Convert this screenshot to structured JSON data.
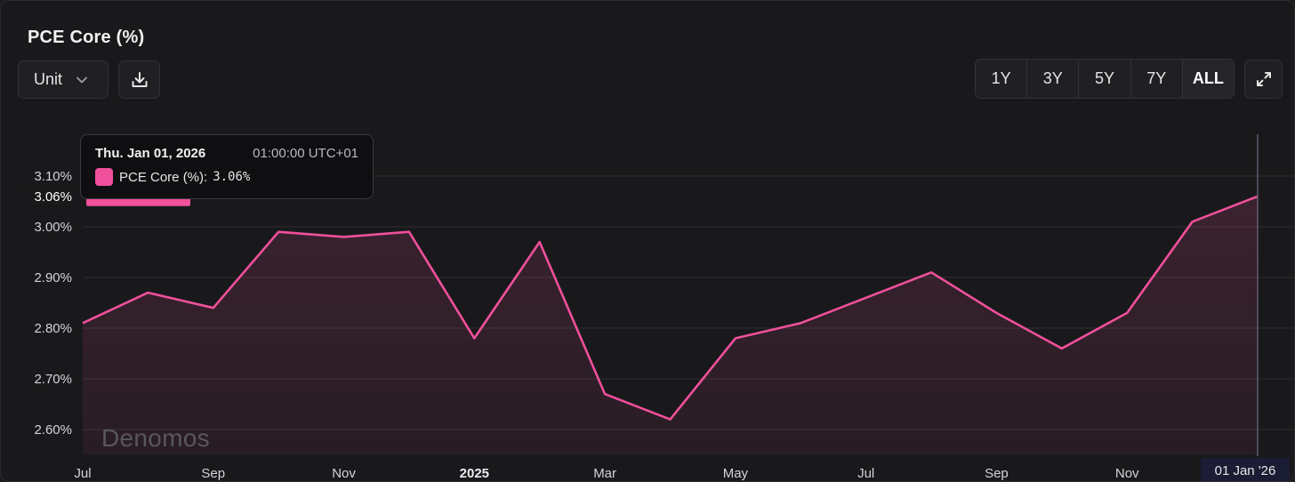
{
  "header": {
    "title": "PCE Core (%)",
    "unit_label": "Unit",
    "icons": {
      "unit_dropdown": "chevron-down-icon",
      "download": "download-icon",
      "expand": "expand-icon"
    }
  },
  "range_buttons": [
    {
      "label": "1Y",
      "active": false
    },
    {
      "label": "3Y",
      "active": false
    },
    {
      "label": "5Y",
      "active": false
    },
    {
      "label": "7Y",
      "active": false
    },
    {
      "label": "ALL",
      "active": true
    }
  ],
  "tooltip": {
    "date": "Thu. Jan 01, 2026",
    "time": "01:00:00 UTC+01",
    "series_label": "PCE Core (%):",
    "value": "3.06%"
  },
  "crosshair_x_label": "01 Jan '26",
  "watermark": "Denomos",
  "colors": {
    "series": "#f0509c",
    "background": "#19191b",
    "grid": "#2f2f33",
    "crosshair_label_bg": "#1a1d33"
  },
  "chart_data": {
    "type": "area",
    "title": "PCE Core (%)",
    "series": [
      {
        "name": "PCE Core (%)",
        "x": [
          "2024-07-01",
          "2024-08-01",
          "2024-09-01",
          "2024-10-01",
          "2024-11-01",
          "2024-12-01",
          "2025-01-01",
          "2025-02-01",
          "2025-03-01",
          "2025-04-01",
          "2025-05-01",
          "2025-06-01",
          "2025-07-01",
          "2025-08-01",
          "2025-09-01",
          "2025-10-01",
          "2025-11-01",
          "2025-12-01",
          "2026-01-01"
        ],
        "values": [
          2.81,
          2.87,
          2.84,
          2.99,
          2.98,
          2.99,
          2.78,
          2.97,
          2.67,
          2.62,
          2.78,
          2.81,
          2.86,
          2.91,
          2.83,
          2.76,
          2.83,
          3.01,
          3.06
        ]
      }
    ],
    "x_tick_labels": [
      "Jul",
      "Sep",
      "Nov",
      "2025",
      "Mar",
      "May",
      "Jul",
      "Sep",
      "Nov"
    ],
    "x_tick_bold": [
      "2025"
    ],
    "y_ticks": [
      2.6,
      2.7,
      2.8,
      2.9,
      3.0,
      3.1
    ],
    "y_tick_labels": [
      "2.60%",
      "2.70%",
      "2.80%",
      "2.90%",
      "3.00%",
      "3.10%"
    ],
    "ylim": [
      2.5,
      3.2
    ],
    "grid": true,
    "last_value_label": "3.06%"
  }
}
